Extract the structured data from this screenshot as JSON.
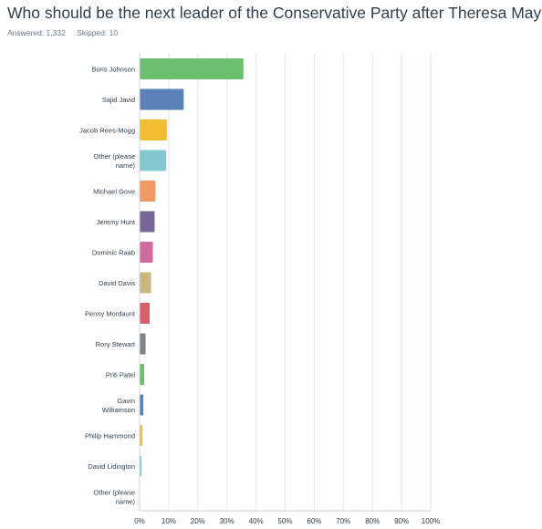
{
  "question": {
    "title": "Who should be the next leader of the Conservative Party after Theresa May?",
    "answered": "Answered: 1,332",
    "skipped": "Skipped: 10"
  },
  "chart_data": {
    "type": "bar",
    "orientation": "horizontal",
    "categories": [
      [
        "Boris Johnson"
      ],
      [
        "Sajid Javid"
      ],
      [
        "Jacob Rees-Mogg"
      ],
      [
        "Other (please",
        "name)"
      ],
      [
        "Michael Gove"
      ],
      [
        "Jeremy Hunt"
      ],
      [
        "Dominic Raab"
      ],
      [
        "David Davis"
      ],
      [
        "Penny Mordaunt"
      ],
      [
        "Rory Stewart"
      ],
      [
        "Priti Patel"
      ],
      [
        "Gavin",
        "Williamson"
      ],
      [
        "Philip Hammond"
      ],
      [
        "David Lidington"
      ],
      [
        "Other (please",
        "name)"
      ]
    ],
    "values": [
      35.5,
      15.0,
      9.2,
      9.0,
      5.3,
      5.0,
      4.4,
      3.8,
      3.3,
      1.9,
      1.4,
      1.1,
      0.8,
      0.4,
      0.0
    ],
    "colors": [
      "#6bbf6e",
      "#5b83b9",
      "#f2bd33",
      "#84c8cf",
      "#f19a63",
      "#7b6699",
      "#cc6b9c",
      "#c9b77f",
      "#d95f66",
      "#7d858c",
      "#6bbf6e",
      "#5b83b9",
      "#f2bd33",
      "#84c8cf",
      "#f19a63"
    ],
    "xlim": [
      0,
      100
    ],
    "xticks": [
      "0%",
      "10%",
      "20%",
      "30%",
      "40%",
      "50%",
      "60%",
      "70%",
      "80%",
      "90%",
      "100%"
    ],
    "grid": true
  }
}
